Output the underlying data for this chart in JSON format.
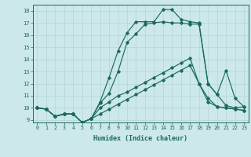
{
  "xlabel": "Humidex (Indice chaleur)",
  "bg_color": "#cce8e8",
  "grid_color": "#b8d8d8",
  "line_color": "#1a6b5a",
  "xlim": [
    -0.5,
    23.5
  ],
  "ylim": [
    8.8,
    18.5
  ],
  "xticks": [
    0,
    1,
    2,
    3,
    4,
    5,
    6,
    7,
    8,
    9,
    10,
    11,
    12,
    13,
    14,
    15,
    16,
    17,
    18,
    19,
    20,
    21,
    22,
    23
  ],
  "yticks": [
    9,
    10,
    11,
    12,
    13,
    14,
    15,
    16,
    17,
    18
  ],
  "series": [
    [
      10.0,
      9.9,
      9.3,
      9.5,
      9.5,
      8.8,
      9.1,
      10.5,
      12.5,
      14.7,
      16.2,
      17.1,
      17.1,
      17.1,
      18.1,
      18.1,
      17.3,
      17.1,
      17.0,
      12.0,
      11.1,
      10.2,
      10.0,
      10.1
    ],
    [
      10.0,
      9.9,
      9.3,
      9.5,
      9.5,
      8.8,
      9.1,
      10.4,
      11.2,
      13.0,
      15.4,
      16.1,
      16.9,
      17.0,
      17.1,
      17.0,
      17.0,
      16.9,
      16.9,
      12.0,
      11.1,
      13.1,
      10.8,
      10.1
    ],
    [
      10.0,
      9.9,
      9.3,
      9.5,
      9.5,
      8.8,
      9.1,
      10.0,
      10.5,
      11.0,
      11.3,
      11.7,
      12.1,
      12.5,
      12.9,
      13.3,
      13.7,
      14.1,
      12.0,
      10.8,
      10.1,
      10.0,
      9.9,
      9.8
    ],
    [
      10.0,
      9.9,
      9.3,
      9.5,
      9.5,
      8.8,
      9.1,
      9.5,
      9.9,
      10.3,
      10.7,
      11.1,
      11.5,
      11.9,
      12.3,
      12.7,
      13.1,
      13.5,
      12.0,
      10.5,
      10.1,
      10.0,
      9.9,
      9.8
    ]
  ]
}
